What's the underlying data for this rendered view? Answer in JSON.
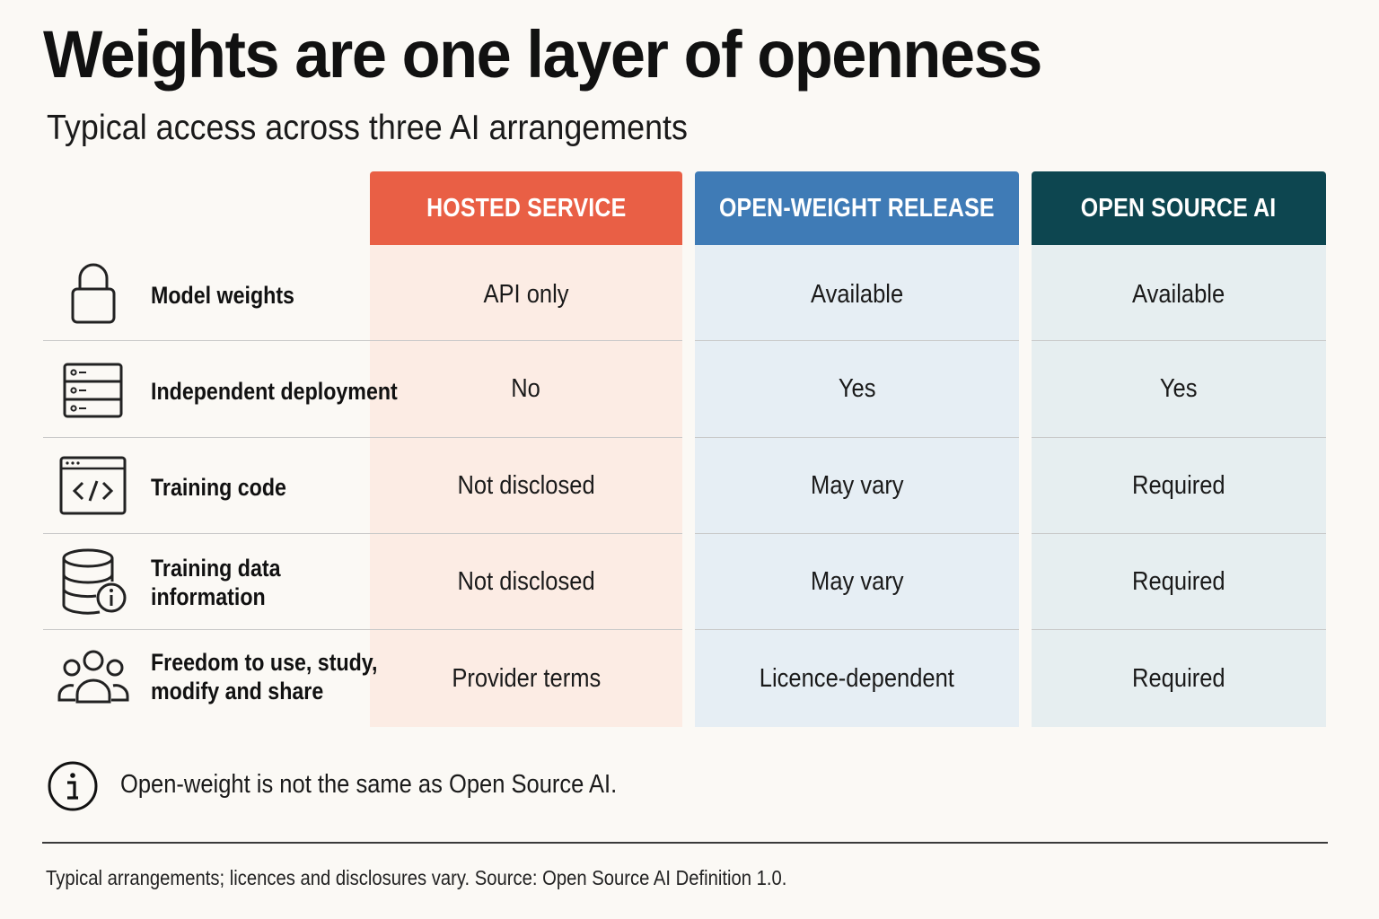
{
  "header": {
    "title": "Weights are one layer of openness",
    "subtitle": "Typical access across three AI arrangements"
  },
  "columns": [
    {
      "label": "HOSTED SERVICE",
      "color": "#e95f45"
    },
    {
      "label": "OPEN-WEIGHT RELEASE",
      "color": "#3f7bb6"
    },
    {
      "label": "OPEN SOURCE AI",
      "color": "#0d4650"
    }
  ],
  "rows": [
    {
      "icon": "lock-icon",
      "label_lines": [
        "Model weights"
      ],
      "values": [
        "API only",
        "Available",
        "Available"
      ]
    },
    {
      "icon": "server-icon",
      "label_lines": [
        "Independent deployment"
      ],
      "values": [
        "No",
        "Yes",
        "Yes"
      ]
    },
    {
      "icon": "code-window-icon",
      "label_lines": [
        "Training code"
      ],
      "values": [
        "Not disclosed",
        "May vary",
        "Required"
      ]
    },
    {
      "icon": "database-info-icon",
      "label_lines": [
        "Training data",
        "information"
      ],
      "values": [
        "Not disclosed",
        "May vary",
        "Required"
      ]
    },
    {
      "icon": "people-group-icon",
      "label_lines": [
        "Freedom to use, study,",
        "modify and share"
      ],
      "values": [
        "Provider terms",
        "Licence-dependent",
        "Required"
      ]
    }
  ],
  "note": {
    "icon": "info-icon",
    "text": "Open-weight is not the same as Open Source AI."
  },
  "footnote": "Typical arrangements; licences and disclosures vary. Source: Open Source AI Definition 1.0."
}
